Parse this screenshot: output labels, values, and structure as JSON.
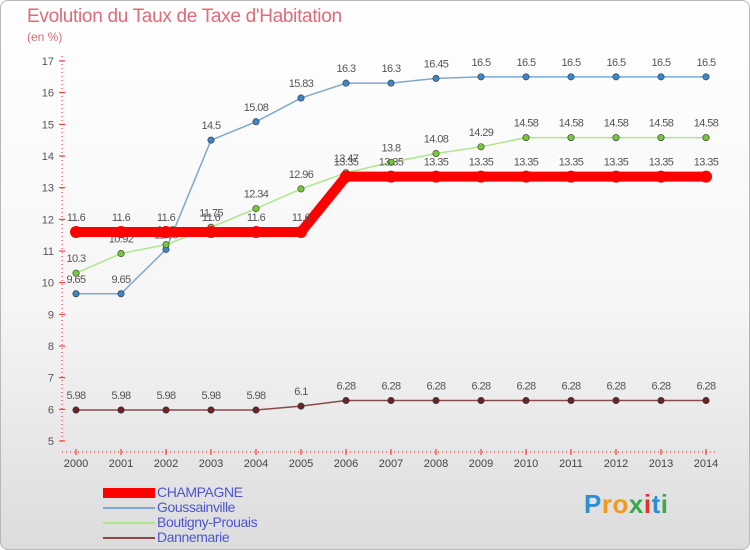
{
  "chart_data": {
    "type": "line",
    "title": "Evolution du Taux de Taxe d'Habitation",
    "subtitle": "(en %)",
    "x": [
      2000,
      2001,
      2002,
      2003,
      2004,
      2005,
      2006,
      2007,
      2008,
      2009,
      2010,
      2011,
      2012,
      2013,
      2014
    ],
    "x_tick_labels": [
      "2000",
      "2001",
      "2002",
      "2003",
      "2004",
      "2005",
      "2006",
      "2007",
      "2008",
      "2009",
      "2010",
      "2011",
      "2012",
      "2013",
      "2014"
    ],
    "ylim": [
      5,
      17
    ],
    "y_ticks": [
      5,
      6,
      7,
      8,
      9,
      10,
      11,
      12,
      13,
      14,
      15,
      16,
      17
    ],
    "grid": false,
    "legend_position": "bottom-left",
    "series": [
      {
        "name": "Goussainville",
        "color": "#7fa9d3",
        "marker_color": "#3f84c5",
        "values": [
          9.65,
          9.65,
          11.05,
          14.5,
          15.08,
          15.83,
          16.3,
          16.3,
          16.45,
          16.5,
          16.5,
          16.5,
          16.5,
          16.5,
          16.5
        ],
        "labels": [
          "9.65",
          "9.65",
          "11.05",
          "14.5",
          "15.08",
          "15.83",
          "16.3",
          "16.3",
          "16.45",
          "16.5",
          "16.5",
          "16.5",
          "16.5",
          "16.5",
          "16.5"
        ]
      },
      {
        "name": "Boutigny-Prouais",
        "color": "#aee68a",
        "marker_color": "#76c83c",
        "values": [
          10.3,
          10.92,
          11.2,
          11.75,
          12.34,
          12.96,
          13.47,
          13.8,
          14.08,
          14.29,
          14.58,
          14.58,
          14.58,
          14.58,
          14.58
        ],
        "labels": [
          "10.3",
          "10.92",
          "11.2",
          "11.75",
          "12.34",
          "12.96",
          "13.47",
          "13.8",
          "14.08",
          "14.29",
          "14.58",
          "14.58",
          "14.58",
          "14.58",
          "14.58"
        ]
      },
      {
        "name": "Dannemarie",
        "color": "#8b4a4a",
        "marker_color": "#6b2424",
        "values": [
          5.98,
          5.98,
          5.98,
          5.98,
          5.98,
          6.1,
          6.28,
          6.28,
          6.28,
          6.28,
          6.28,
          6.28,
          6.28,
          6.28,
          6.28
        ],
        "labels": [
          "5.98",
          "5.98",
          "5.98",
          "5.98",
          "5.98",
          "6.1",
          "6.28",
          "6.28",
          "6.28",
          "6.28",
          "6.28",
          "6.28",
          "6.28",
          "6.28",
          "6.28"
        ]
      },
      {
        "name": "CHAMPAGNE",
        "color": "#ff0000",
        "marker_color": "#ff0000",
        "values": [
          11.6,
          11.6,
          11.6,
          11.6,
          11.6,
          11.6,
          13.35,
          13.35,
          13.35,
          13.35,
          13.35,
          13.35,
          13.35,
          13.35,
          13.35
        ],
        "labels": [
          "11.6",
          "11.6",
          "11.6",
          "11.6",
          "11.6",
          "11.6",
          "13.35",
          "13.35",
          "13.35",
          "13.35",
          "13.35",
          "13.35",
          "13.35",
          "13.35",
          "13.35"
        ]
      }
    ],
    "legend": [
      {
        "name": "CHAMPAGNE",
        "color": "#ff0000"
      },
      {
        "name": "Goussainville",
        "color": "#7fa9d3"
      },
      {
        "name": "Boutigny-Prouais",
        "color": "#aee68a"
      },
      {
        "name": "Dannemarie",
        "color": "#8b4a4a"
      }
    ]
  },
  "brand": {
    "letters": [
      "P",
      "r",
      "o",
      "x",
      "i",
      "t",
      "i"
    ],
    "colors": [
      "#2f8fd6",
      "#f09a1c",
      "#f09a1c",
      "#3aa84a",
      "#e0312d",
      "#2f8fd6",
      "#3aa84a"
    ]
  }
}
